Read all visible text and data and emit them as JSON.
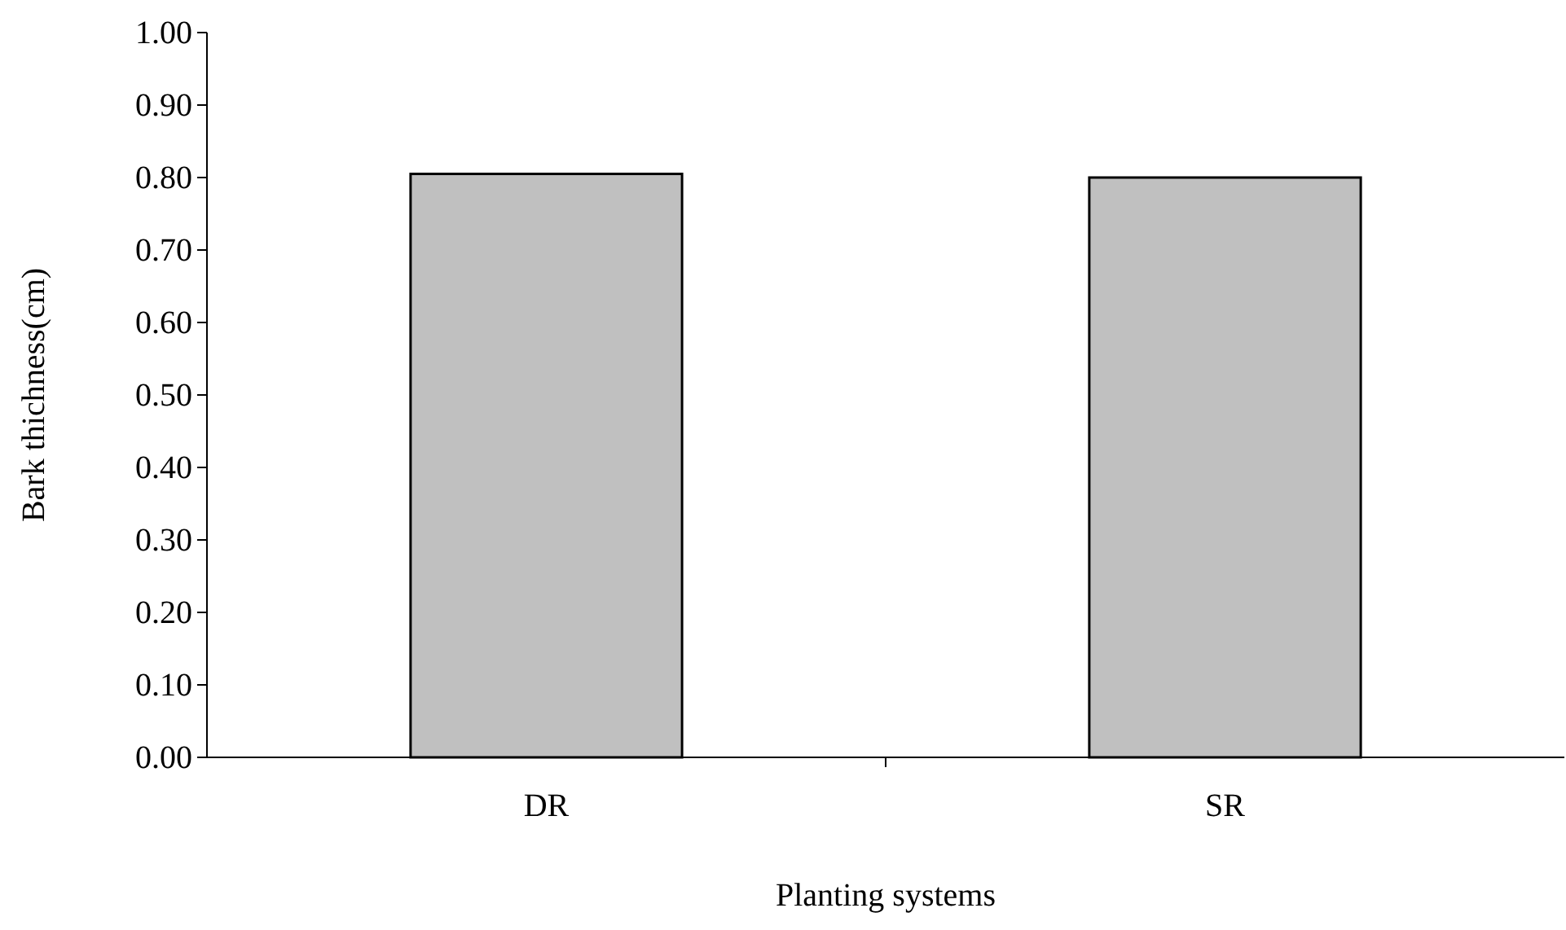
{
  "chart_data": {
    "type": "bar",
    "xlabel": "Planting systems",
    "ylabel": "Bark thichness(cm)",
    "categories": [
      "DR",
      "SR"
    ],
    "values": [
      0.805,
      0.8
    ],
    "color": "#c0c0c0",
    "ylim": [
      0,
      1
    ],
    "yticks": [
      {
        "value": 0,
        "label": "0.00"
      },
      {
        "value": 0.1,
        "label": "0.10"
      },
      {
        "value": 0.2,
        "label": "0.20"
      },
      {
        "value": 0.3,
        "label": "0.30"
      },
      {
        "value": 0.4,
        "label": "0.40"
      },
      {
        "value": 0.5,
        "label": "0.50"
      },
      {
        "value": 0.6,
        "label": "0.60"
      },
      {
        "value": 0.7,
        "label": "0.70"
      },
      {
        "value": 0.8,
        "label": "0.80"
      },
      {
        "value": 0.9,
        "label": "0.90"
      },
      {
        "value": 1,
        "label": "1.00"
      }
    ],
    "grid": false
  }
}
